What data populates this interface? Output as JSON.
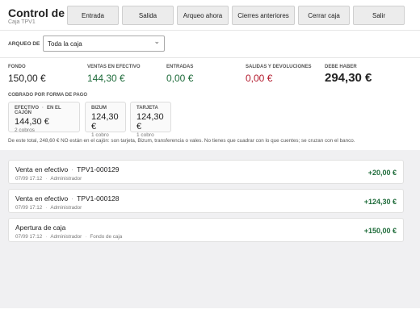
{
  "header": {
    "title": "Control de caj",
    "subtitle": "Caja TPV1",
    "buttons": [
      "Entrada",
      "Salida",
      "Arqueo ahora",
      "Cierres anteriores",
      "Cerrar caja",
      "Salir"
    ]
  },
  "filter": {
    "label": "ARQUEO DE",
    "value": "Toda la caja"
  },
  "stats": [
    {
      "label": "FONDO",
      "value": "150,00 €"
    },
    {
      "label": "VENTAS EN EFECTIVO",
      "value": "144,30 €"
    },
    {
      "label": "ENTRADAS",
      "value": "0,00 €"
    },
    {
      "label": "SALIDAS Y DEVOLUCIONES",
      "value": "0,00 €"
    },
    {
      "label": "DEBE HABER",
      "value": "294,30 €"
    }
  ],
  "payments": {
    "title": "COBRADO POR FORMA DE PAGO",
    "cards": [
      {
        "label": "EFECTIVO",
        "tag": "EN EL CAJÓN",
        "amount": "144,30 €",
        "count": "2 cobros"
      },
      {
        "label": "BIZUM",
        "amount": "124,30 €",
        "count": "1 cobro"
      },
      {
        "label": "TARJETA",
        "amount": "124,30 €",
        "count": "1 cobro"
      }
    ]
  },
  "note": "De este total, 248,60 € NO están en el cajón: son tarjeta, Bizum, transferencia o vales. No tienes que cuadrar con lo que cuentes; se cruzan con el banco.",
  "movements": [
    {
      "title": "Venta en efectivo",
      "ref": "TPV1-000129",
      "time": "07/09 17:12",
      "user": "Administrador",
      "amount": "+20,00 €"
    },
    {
      "title": "Venta en efectivo",
      "ref": "TPV1-000128",
      "time": "07/09 17:12",
      "user": "Administrador",
      "amount": "+124,30 €"
    },
    {
      "title": "Apertura de caja",
      "time": "07/09 17:12",
      "user": "Administrador",
      "extra": "Fondo de caja",
      "amount": "+150,00 €"
    }
  ]
}
